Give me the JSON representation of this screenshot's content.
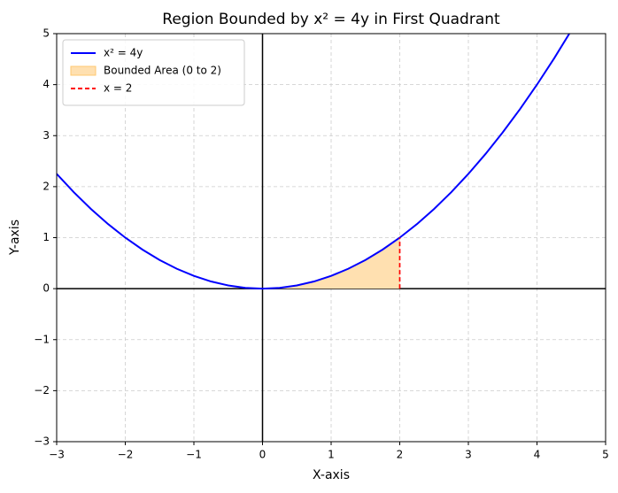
{
  "chart_data": {
    "type": "line",
    "title": "Region Bounded by x² = 4y in First Quadrant",
    "x_label": "X-axis",
    "y_label": "Y-axis",
    "xlim": [
      -3,
      5
    ],
    "ylim": [
      -3,
      5
    ],
    "xticks": [
      {
        "value": -3,
        "label": "−3"
      },
      {
        "value": -2,
        "label": "−2"
      },
      {
        "value": -1,
        "label": "−1"
      },
      0,
      1,
      2,
      3,
      4,
      5
    ],
    "yticks": [
      {
        "value": -3,
        "label": "−3"
      },
      {
        "value": -2,
        "label": "−2"
      },
      {
        "value": -1,
        "label": "−1"
      },
      0,
      1,
      2,
      3,
      4,
      5
    ],
    "grid": true,
    "legend": "upper left",
    "series": [
      {
        "name": "x² = 4y",
        "type": "line",
        "color": "#0000ff",
        "x": [
          -3,
          -2.75,
          -2.5,
          -2.25,
          -2,
          -1.75,
          -1.5,
          -1.25,
          -1,
          -0.75,
          -0.5,
          -0.25,
          0,
          0.25,
          0.5,
          0.75,
          1,
          1.25,
          1.5,
          1.75,
          2,
          2.25,
          2.5,
          2.75,
          3,
          3.25,
          3.5,
          3.75,
          4,
          4.25,
          4.5
        ],
        "values": [
          2.25,
          1.890625,
          1.5625,
          1.265625,
          1,
          0.765625,
          0.5625,
          0.390625,
          0.25,
          0.140625,
          0.0625,
          0.015625,
          0,
          0.015625,
          0.0625,
          0.140625,
          0.25,
          0.390625,
          0.5625,
          0.765625,
          1,
          1.265625,
          1.5625,
          1.890625,
          2.25,
          2.640625,
          3.0625,
          3.515625,
          4,
          4.515625,
          5.0625
        ]
      },
      {
        "name": "Bounded Area (0 to 2)",
        "type": "area",
        "color": "#ffe0b0",
        "x": [
          0,
          0.25,
          0.5,
          0.75,
          1,
          1.25,
          1.5,
          1.75,
          2
        ],
        "values": [
          0,
          0.015625,
          0.0625,
          0.140625,
          0.25,
          0.390625,
          0.5625,
          0.765625,
          1
        ]
      },
      {
        "name": "x = 2",
        "type": "dashed",
        "color": "#ff0000",
        "x": [
          2,
          2
        ],
        "values": [
          0,
          1
        ]
      }
    ]
  }
}
